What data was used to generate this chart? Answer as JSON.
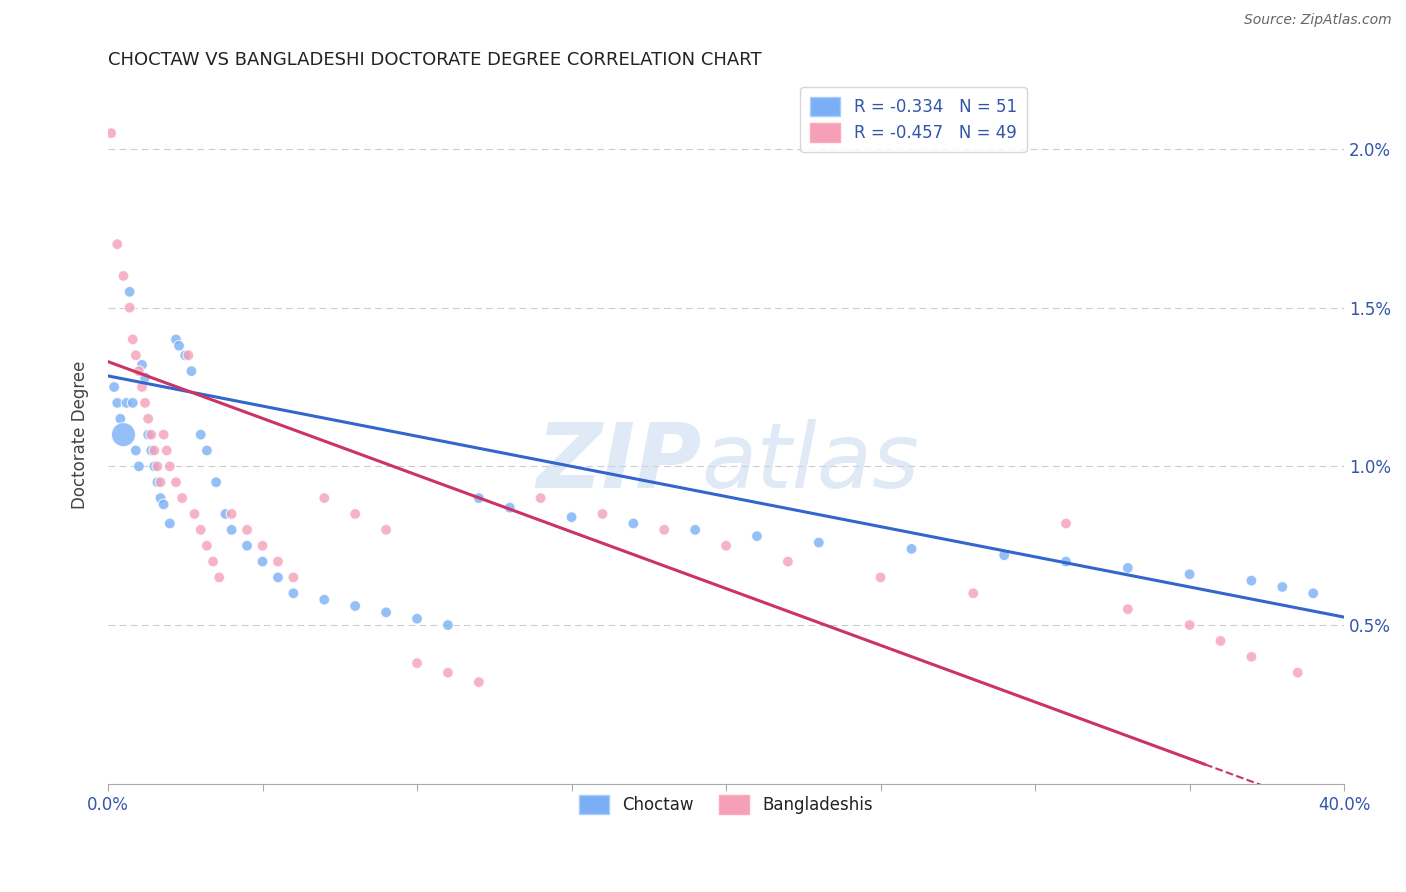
{
  "title": "CHOCTAW VS BANGLADESHI DOCTORATE DEGREE CORRELATION CHART",
  "source": "Source: ZipAtlas.com",
  "ylabel": "Doctorate Degree",
  "ytick_labels": [
    "0.5%",
    "1.0%",
    "1.5%",
    "2.0%"
  ],
  "ytick_values": [
    0.005,
    0.01,
    0.015,
    0.02
  ],
  "xlim": [
    0.0,
    0.4
  ],
  "ylim": [
    0.0,
    0.022
  ],
  "legend_label1": "Choctaw",
  "legend_label2": "Bangladeshis",
  "color_blue": "#7aaff5",
  "color_pink": "#f5a0b8",
  "trend_blue": [
    0.0,
    0.01285,
    0.4,
    0.00525
  ],
  "trend_pink": [
    0.0,
    0.0133,
    0.4,
    -0.001
  ],
  "trend_pink_solid_end": 0.355,
  "background_color": "#ffffff",
  "grid_color": "#cccccc",
  "choctaw_x": [
    0.002,
    0.003,
    0.004,
    0.005,
    0.006,
    0.007,
    0.008,
    0.009,
    0.01,
    0.011,
    0.012,
    0.013,
    0.014,
    0.015,
    0.016,
    0.017,
    0.018,
    0.02,
    0.022,
    0.023,
    0.025,
    0.027,
    0.03,
    0.032,
    0.035,
    0.038,
    0.04,
    0.045,
    0.05,
    0.055,
    0.06,
    0.07,
    0.08,
    0.09,
    0.1,
    0.11,
    0.12,
    0.13,
    0.15,
    0.17,
    0.19,
    0.21,
    0.23,
    0.26,
    0.29,
    0.31,
    0.33,
    0.35,
    0.37,
    0.38,
    0.39
  ],
  "choctaw_y": [
    0.0125,
    0.012,
    0.0115,
    0.011,
    0.012,
    0.0155,
    0.012,
    0.0105,
    0.01,
    0.0132,
    0.0128,
    0.011,
    0.0105,
    0.01,
    0.0095,
    0.009,
    0.0088,
    0.0082,
    0.014,
    0.0138,
    0.0135,
    0.013,
    0.011,
    0.0105,
    0.0095,
    0.0085,
    0.008,
    0.0075,
    0.007,
    0.0065,
    0.006,
    0.0058,
    0.0056,
    0.0054,
    0.0052,
    0.005,
    0.009,
    0.0087,
    0.0084,
    0.0082,
    0.008,
    0.0078,
    0.0076,
    0.0074,
    0.0072,
    0.007,
    0.0068,
    0.0066,
    0.0064,
    0.0062,
    0.006
  ],
  "choctaw_sizes": [
    60,
    60,
    60,
    300,
    60,
    60,
    60,
    60,
    60,
    60,
    60,
    60,
    60,
    60,
    60,
    60,
    60,
    60,
    60,
    60,
    60,
    60,
    60,
    60,
    60,
    60,
    60,
    60,
    60,
    60,
    60,
    60,
    60,
    60,
    60,
    60,
    60,
    60,
    60,
    60,
    60,
    60,
    60,
    60,
    60,
    60,
    60,
    60,
    60,
    60,
    60
  ],
  "bangladeshi_x": [
    0.001,
    0.003,
    0.005,
    0.007,
    0.008,
    0.009,
    0.01,
    0.011,
    0.012,
    0.013,
    0.014,
    0.015,
    0.016,
    0.017,
    0.018,
    0.019,
    0.02,
    0.022,
    0.024,
    0.026,
    0.028,
    0.03,
    0.032,
    0.034,
    0.036,
    0.04,
    0.045,
    0.05,
    0.055,
    0.06,
    0.07,
    0.08,
    0.09,
    0.1,
    0.11,
    0.12,
    0.14,
    0.16,
    0.18,
    0.2,
    0.22,
    0.25,
    0.28,
    0.31,
    0.33,
    0.35,
    0.36,
    0.37,
    0.385
  ],
  "bangladeshi_y": [
    0.0205,
    0.017,
    0.016,
    0.015,
    0.014,
    0.0135,
    0.013,
    0.0125,
    0.012,
    0.0115,
    0.011,
    0.0105,
    0.01,
    0.0095,
    0.011,
    0.0105,
    0.01,
    0.0095,
    0.009,
    0.0135,
    0.0085,
    0.008,
    0.0075,
    0.007,
    0.0065,
    0.0085,
    0.008,
    0.0075,
    0.007,
    0.0065,
    0.009,
    0.0085,
    0.008,
    0.0038,
    0.0035,
    0.0032,
    0.009,
    0.0085,
    0.008,
    0.0075,
    0.007,
    0.0065,
    0.006,
    0.0082,
    0.0055,
    0.005,
    0.0045,
    0.004,
    0.0035
  ],
  "bangladeshi_sizes": [
    60,
    60,
    60,
    60,
    60,
    60,
    60,
    60,
    60,
    60,
    60,
    60,
    60,
    60,
    60,
    60,
    60,
    60,
    60,
    60,
    60,
    60,
    60,
    60,
    60,
    60,
    60,
    60,
    60,
    60,
    60,
    60,
    60,
    60,
    60,
    60,
    60,
    60,
    60,
    60,
    60,
    60,
    60,
    60,
    60,
    60,
    60,
    60,
    60
  ]
}
